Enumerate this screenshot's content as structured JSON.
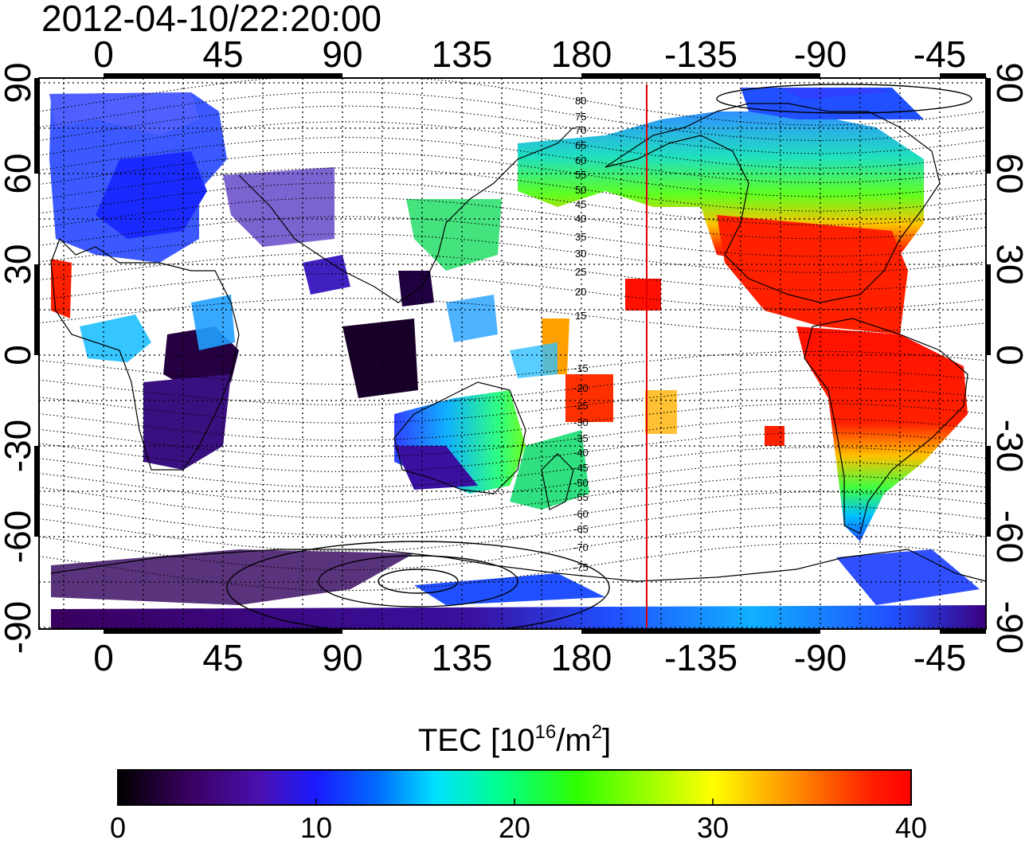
{
  "timestamp": "2012-04-10/22:20:00",
  "map": {
    "type": "ionospheric TEC map",
    "projection": "equirectangular",
    "lon_ticks_top": [
      "0",
      "45",
      "90",
      "135",
      "180",
      "-135",
      "-90",
      "-45"
    ],
    "lon_ticks_bottom": [
      "0",
      "45",
      "90",
      "135",
      "180",
      "-135",
      "-90",
      "-45"
    ],
    "lat_ticks_left": [
      "90",
      "60",
      "30",
      "0",
      "-30",
      "-60",
      "-90"
    ],
    "lat_ticks_right": [
      "90",
      "60",
      "30",
      "0",
      "-30",
      "-60",
      "-90"
    ],
    "lon_range": [
      -25,
      335
    ],
    "lat_range": [
      -92,
      92
    ],
    "grid": true,
    "terminator_line_lon": 206,
    "terminator_color": "#e00000",
    "magnetic_latitude_labels": [
      "80",
      "75",
      "70",
      "65",
      "60",
      "55",
      "50",
      "45",
      "40",
      "35",
      "30",
      "25",
      "20",
      "15",
      "-15",
      "-20",
      "-25",
      "-30",
      "-35",
      "-40",
      "-45",
      "-50",
      "-55",
      "-60",
      "-65",
      "-70",
      "-75"
    ]
  },
  "colorbar": {
    "title_main": "TEC  [10",
    "title_exp1": "16",
    "title_mid": "/m",
    "title_exp2": "2",
    "title_end": "]",
    "min": 0,
    "max": 40,
    "labels": [
      "0",
      "10",
      "20",
      "30",
      "40"
    ],
    "colors": [
      "#000000",
      "#3a0060",
      "#4a10b0",
      "#1a1aff",
      "#0070ff",
      "#00e0ff",
      "#00ff90",
      "#30ff00",
      "#ffff00",
      "#ff9000",
      "#ff2000",
      "#ff0000"
    ]
  }
}
